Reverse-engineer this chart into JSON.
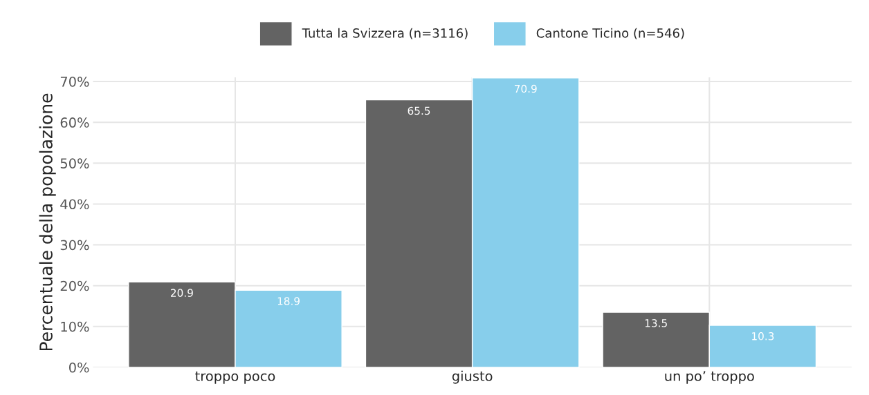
{
  "chart_data": {
    "type": "bar",
    "ylabel": "Percentuale della popolazione",
    "categories": [
      "troppo poco",
      "giusto",
      "un po’ troppo"
    ],
    "series": [
      {
        "name": "Tutta la Svizzera (n=3116)",
        "color": "#636363",
        "values": [
          20.9,
          65.5,
          13.5
        ]
      },
      {
        "name": "Cantone Ticino (n=546)",
        "color": "#87ceeb",
        "values": [
          18.9,
          70.9,
          10.3
        ]
      }
    ],
    "ylim": [
      0,
      71
    ],
    "yticks": [
      {
        "value": 0,
        "label": "0%"
      },
      {
        "value": 10,
        "label": "10%"
      },
      {
        "value": 20,
        "label": "20%"
      },
      {
        "value": 30,
        "label": "30%"
      },
      {
        "value": 40,
        "label": "40%"
      },
      {
        "value": 50,
        "label": "50%"
      },
      {
        "value": 60,
        "label": "60%"
      },
      {
        "value": 70,
        "label": "70%"
      }
    ],
    "grid": true,
    "legend": "top",
    "data_labels": true
  }
}
